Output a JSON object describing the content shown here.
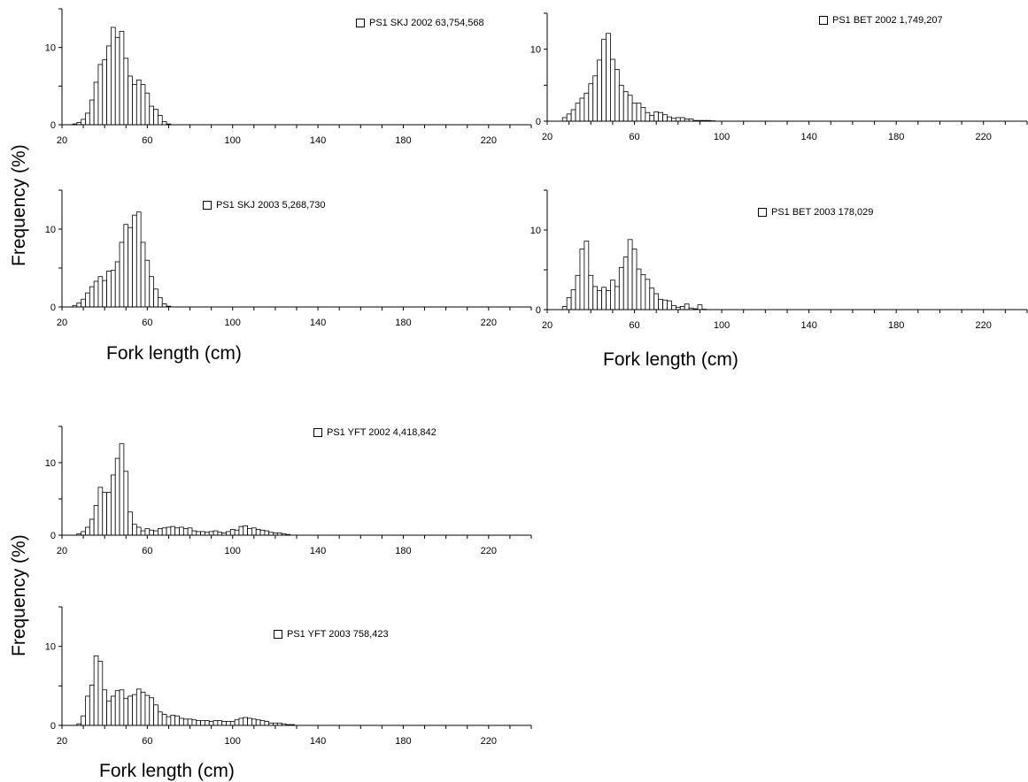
{
  "axis_titles": {
    "ylabel_top": "Frequency (%)",
    "ylabel_bottom": "Frequency (%)",
    "xlabel_left_mid": "Fork length (cm)",
    "xlabel_right_mid": "Fork length (cm)",
    "xlabel_bottom": "Fork length (cm)"
  },
  "chart_data": [
    {
      "type": "bar",
      "legend": "PS1 SKJ 2002 63,754,568",
      "xlim": [
        20,
        240
      ],
      "ylim": [
        0,
        15
      ],
      "x_ticks": [
        20,
        60,
        100,
        140,
        180,
        220
      ],
      "y_ticks": [
        0,
        10
      ],
      "bin_width": 2,
      "x": [
        26,
        28,
        30,
        32,
        34,
        36,
        38,
        40,
        42,
        44,
        46,
        48,
        50,
        52,
        54,
        56,
        58,
        60,
        62,
        64,
        66,
        68,
        70
      ],
      "values": [
        0.1,
        0.3,
        0.7,
        1.5,
        3.2,
        5.5,
        7.8,
        8.4,
        10.2,
        12.6,
        11.3,
        12.1,
        8.6,
        6.3,
        5.2,
        5.8,
        5.2,
        4.1,
        2.4,
        2.0,
        1.2,
        0.4,
        0.1
      ]
    },
    {
      "type": "bar",
      "legend": "PS1 BET 2002 1,749,207",
      "xlim": [
        20,
        240
      ],
      "ylim": [
        0,
        15
      ],
      "x_ticks": [
        20,
        60,
        100,
        140,
        180,
        220
      ],
      "y_ticks": [
        0,
        10
      ],
      "bin_width": 2,
      "x": [
        28,
        30,
        32,
        34,
        36,
        38,
        40,
        42,
        44,
        46,
        48,
        50,
        52,
        54,
        56,
        58,
        60,
        62,
        64,
        66,
        68,
        70,
        72,
        74,
        76,
        78,
        80,
        82,
        84,
        86,
        88,
        90,
        92,
        94,
        96
      ],
      "values": [
        0.5,
        1.0,
        1.6,
        2.5,
        3.2,
        3.9,
        5.2,
        6.3,
        8.5,
        11.4,
        12.2,
        8.6,
        7.2,
        5.0,
        4.1,
        3.6,
        2.5,
        2.5,
        1.9,
        1.2,
        0.8,
        1.3,
        1.2,
        0.9,
        0.6,
        0.4,
        0.5,
        0.5,
        0.3,
        0.3,
        0.1,
        0.1,
        0.1,
        0.1,
        0.05
      ]
    },
    {
      "type": "bar",
      "legend": "PS1 SKJ 2003 5,268,730",
      "xlim": [
        20,
        240
      ],
      "ylim": [
        0,
        15
      ],
      "x_ticks": [
        20,
        60,
        100,
        140,
        180,
        220
      ],
      "y_ticks": [
        0,
        10
      ],
      "bin_width": 2,
      "x": [
        26,
        28,
        30,
        32,
        34,
        36,
        38,
        40,
        42,
        44,
        46,
        48,
        50,
        52,
        54,
        56,
        58,
        60,
        62,
        64,
        66,
        68,
        70
      ],
      "values": [
        0.2,
        0.5,
        1.0,
        1.8,
        2.6,
        3.3,
        3.9,
        3.4,
        4.6,
        4.7,
        5.8,
        8.3,
        10.6,
        10.2,
        11.8,
        12.2,
        8.3,
        6.0,
        3.9,
        2.3,
        1.2,
        0.4,
        0.1
      ]
    },
    {
      "type": "bar",
      "legend": "PS1 BET 2003 178,029",
      "xlim": [
        20,
        240
      ],
      "ylim": [
        0,
        15
      ],
      "x_ticks": [
        20,
        60,
        100,
        140,
        180,
        220
      ],
      "y_ticks": [
        0,
        10
      ],
      "bin_width": 2,
      "x": [
        28,
        30,
        32,
        34,
        36,
        38,
        40,
        42,
        44,
        46,
        48,
        50,
        52,
        54,
        56,
        58,
        60,
        62,
        64,
        66,
        68,
        70,
        72,
        74,
        76,
        78,
        80,
        82,
        84,
        86,
        88,
        90,
        92
      ],
      "values": [
        0.4,
        1.5,
        2.5,
        4.3,
        7.6,
        8.6,
        4.3,
        2.9,
        2.4,
        2.8,
        2.4,
        3.7,
        2.9,
        5.3,
        6.6,
        8.8,
        7.6,
        5.1,
        4.4,
        3.8,
        2.7,
        2.0,
        1.3,
        1.2,
        1.1,
        0.5,
        0.3,
        0.4,
        0.7,
        0.2,
        0.1,
        0.6,
        0.05
      ]
    },
    {
      "type": "bar",
      "legend": "PS1 YFT 2002 4,418,842",
      "xlim": [
        20,
        240
      ],
      "ylim": [
        0,
        15
      ],
      "x_ticks": [
        20,
        60,
        100,
        140,
        180,
        220
      ],
      "y_ticks": [
        0,
        10
      ],
      "bin_width": 2,
      "x": [
        28,
        30,
        32,
        34,
        36,
        38,
        40,
        42,
        44,
        46,
        48,
        50,
        52,
        54,
        56,
        58,
        60,
        62,
        64,
        66,
        68,
        70,
        72,
        74,
        76,
        78,
        80,
        82,
        84,
        86,
        88,
        90,
        92,
        94,
        96,
        98,
        100,
        102,
        104,
        106,
        108,
        110,
        112,
        114,
        116,
        118,
        120,
        122,
        124,
        126
      ],
      "values": [
        0.2,
        0.5,
        1.1,
        2.2,
        4.1,
        6.6,
        5.9,
        5.9,
        8.3,
        10.6,
        12.6,
        8.8,
        3.2,
        1.5,
        1.1,
        0.6,
        0.9,
        0.7,
        0.6,
        0.9,
        1.0,
        1.1,
        1.2,
        1.0,
        1.1,
        0.9,
        1.0,
        0.6,
        0.5,
        0.5,
        0.4,
        0.5,
        0.6,
        0.4,
        0.3,
        0.5,
        0.8,
        0.7,
        1.2,
        1.3,
        0.9,
        1.0,
        0.8,
        0.7,
        0.6,
        0.4,
        0.3,
        0.3,
        0.2,
        0.1
      ]
    },
    {
      "type": "bar",
      "legend": "PS1 YFT 2003 758,423",
      "xlim": [
        20,
        240
      ],
      "ylim": [
        0,
        15
      ],
      "x_ticks": [
        20,
        60,
        100,
        140,
        180,
        220
      ],
      "y_ticks": [
        0,
        10
      ],
      "bin_width": 2,
      "x": [
        28,
        30,
        32,
        34,
        36,
        38,
        40,
        42,
        44,
        46,
        48,
        50,
        52,
        54,
        56,
        58,
        60,
        62,
        64,
        66,
        68,
        70,
        72,
        74,
        76,
        78,
        80,
        82,
        84,
        86,
        88,
        90,
        92,
        94,
        96,
        98,
        100,
        102,
        104,
        106,
        108,
        110,
        112,
        114,
        116,
        118,
        120,
        122,
        124,
        126,
        128
      ],
      "values": [
        0.2,
        1.2,
        3.7,
        5.1,
        8.8,
        8.1,
        4.5,
        3.1,
        3.7,
        4.4,
        4.5,
        3.4,
        3.7,
        3.9,
        4.6,
        4.2,
        3.8,
        3.5,
        2.6,
        1.7,
        1.4,
        1.1,
        1.3,
        1.2,
        0.9,
        0.8,
        0.8,
        0.7,
        0.6,
        0.6,
        0.6,
        0.5,
        0.6,
        0.6,
        0.5,
        0.5,
        0.5,
        0.7,
        0.9,
        1.0,
        0.9,
        0.8,
        0.7,
        0.6,
        0.5,
        0.3,
        0.3,
        0.3,
        0.2,
        0.1,
        0.1
      ]
    }
  ]
}
